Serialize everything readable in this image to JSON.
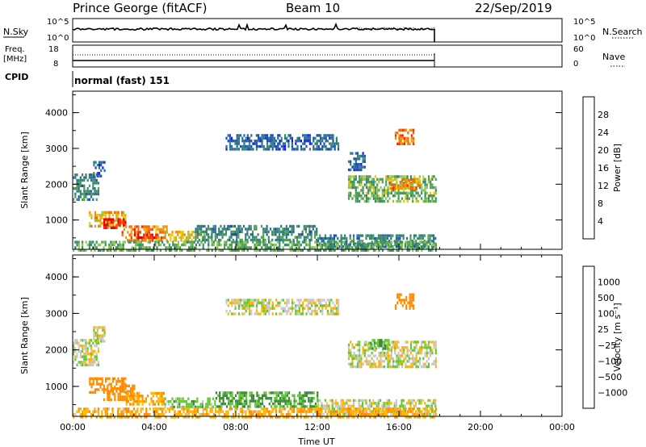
{
  "header": {
    "station": "Prince George (fitACF)",
    "beam": "Beam 10",
    "date": "22/Sep/2019"
  },
  "top_panels": {
    "nsky_label": "N.Sky",
    "nsearch_label": "N.Search",
    "nsky_ticks": [
      "10^5",
      "10^0"
    ],
    "nsearch_ticks": [
      "10^5",
      "10^0"
    ],
    "freq_label_1": "Freq.",
    "freq_label_2": "[MHz]",
    "freq_ticks": [
      "18",
      "8"
    ],
    "nave_label": "Nave",
    "nave_ticks": [
      "60",
      "0"
    ],
    "cpid_label": "CPID",
    "cpid_value": "normal (fast) 151"
  },
  "colors": {
    "power_scale": [
      "#1414ff",
      "#1e4cb4",
      "#2b6e9a",
      "#3a8a6a",
      "#50a050",
      "#8cc850",
      "#f0c800",
      "#f59600",
      "#ff6400",
      "#ff2a00",
      "#e60000"
    ],
    "velocity_scale": [
      "#e60000",
      "#ff5000",
      "#ff8c00",
      "#ffb400",
      "#c8c8c8",
      "#c8c8c8",
      "#64c832",
      "#3a8a3a",
      "#2b6e9a",
      "#1e3cb4"
    ]
  },
  "chart_data": [
    {
      "type": "heatmap",
      "name": "power",
      "xlabel": "",
      "ylabel": "Slant Range [km]",
      "x_range_hours": [
        0,
        24
      ],
      "ylim": [
        180,
        4600
      ],
      "y_ticks": [
        "1000",
        "2000",
        "3000",
        "4000"
      ],
      "colorbar_label": "Power [dB]",
      "colorbar_ticks": [
        "4",
        "8",
        "12",
        "16",
        "20",
        "24",
        "28"
      ],
      "colorbar_range": [
        0,
        30
      ],
      "regions": [
        {
          "t0": 0.0,
          "t1": 1.3,
          "r0": 1550,
          "r1": 2300,
          "level": 9
        },
        {
          "t0": 1.0,
          "t1": 1.6,
          "r0": 2200,
          "r1": 2650,
          "level": 6
        },
        {
          "t0": 0.8,
          "t1": 2.6,
          "r0": 800,
          "r1": 1250,
          "level": 19
        },
        {
          "t0": 1.5,
          "t1": 2.6,
          "r0": 750,
          "r1": 1050,
          "level": 27
        },
        {
          "t0": 2.4,
          "t1": 4.6,
          "r0": 450,
          "r1": 850,
          "level": 22
        },
        {
          "t0": 3.0,
          "t1": 4.2,
          "r0": 470,
          "r1": 620,
          "level": 28
        },
        {
          "t0": 4.5,
          "t1": 6.5,
          "r0": 430,
          "r1": 700,
          "level": 18
        },
        {
          "t0": 6.0,
          "t1": 12.0,
          "r0": 420,
          "r1": 860,
          "level": 9
        },
        {
          "t0": 12.0,
          "t1": 17.8,
          "r0": 250,
          "r1": 600,
          "level": 8
        },
        {
          "t0": 0.0,
          "t1": 17.8,
          "r0": 180,
          "r1": 420,
          "level": 12
        },
        {
          "t0": 7.5,
          "t1": 13.0,
          "r0": 2950,
          "r1": 3400,
          "level": 6
        },
        {
          "t0": 13.5,
          "t1": 17.8,
          "r0": 1550,
          "r1": 2250,
          "level": 13
        },
        {
          "t0": 15.5,
          "t1": 17.0,
          "r0": 1850,
          "r1": 2150,
          "level": 21
        },
        {
          "t0": 15.8,
          "t1": 16.7,
          "r0": 3150,
          "r1": 3550,
          "level": 23
        },
        {
          "t0": 13.5,
          "t1": 14.3,
          "r0": 2400,
          "r1": 2900,
          "level": 6
        }
      ]
    },
    {
      "type": "heatmap",
      "name": "velocity",
      "xlabel": "Time UT",
      "ylabel": "Slant Range [km]",
      "x_range_hours": [
        0,
        24
      ],
      "x_ticks": [
        "00:00",
        "04:00",
        "08:00",
        "12:00",
        "16:00",
        "20:00",
        "00:00"
      ],
      "ylim": [
        180,
        4600
      ],
      "y_ticks": [
        "1000",
        "2000",
        "3000",
        "4000"
      ],
      "colorbar_label": "Velocity [m s⁻¹]",
      "colorbar_ticks": [
        "1000",
        "500",
        "100",
        "25",
        "−25",
        "−100",
        "−500",
        "−1000"
      ],
      "regions": [
        {
          "t0": 0.0,
          "t1": 1.3,
          "r0": 1550,
          "r1": 2300,
          "v": 0
        },
        {
          "t0": 1.0,
          "t1": 1.6,
          "r0": 2200,
          "r1": 2650,
          "v": 0
        },
        {
          "t0": 0.8,
          "t1": 2.6,
          "r0": 800,
          "r1": 1250,
          "v": -400
        },
        {
          "t0": 1.5,
          "t1": 3.0,
          "r0": 650,
          "r1": 1050,
          "v": -300
        },
        {
          "t0": 2.6,
          "t1": 4.5,
          "r0": 480,
          "r1": 850,
          "v": -100
        },
        {
          "t0": 4.5,
          "t1": 7.0,
          "r0": 430,
          "r1": 700,
          "v": 60
        },
        {
          "t0": 7.0,
          "t1": 12.0,
          "r0": 420,
          "r1": 860,
          "v": 120
        },
        {
          "t0": 12.0,
          "t1": 17.8,
          "r0": 250,
          "r1": 650,
          "v": 0
        },
        {
          "t0": 0.0,
          "t1": 17.8,
          "r0": 180,
          "r1": 420,
          "v": -80
        },
        {
          "t0": 7.5,
          "t1": 13.0,
          "r0": 2950,
          "r1": 3400,
          "v": 0
        },
        {
          "t0": 13.5,
          "t1": 17.8,
          "r0": 1550,
          "r1": 2250,
          "v": 0
        },
        {
          "t0": 14.5,
          "t1": 15.5,
          "r0": 2000,
          "r1": 2300,
          "v": 80
        },
        {
          "t0": 15.8,
          "t1": 16.7,
          "r0": 3150,
          "r1": 3550,
          "v": -200
        }
      ]
    }
  ]
}
